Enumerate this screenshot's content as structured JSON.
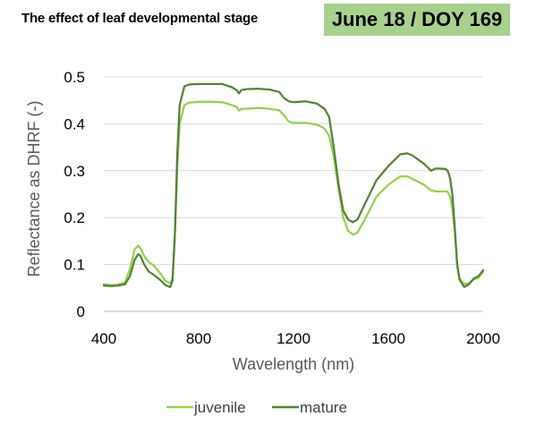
{
  "header": {
    "title": "The effect of leaf developmental stage",
    "date_badge": "June 18 / DOY 169"
  },
  "chart_data": {
    "type": "line",
    "title": "The effect of leaf developmental stage",
    "xlabel": "Wavelength (nm)",
    "ylabel": "Reflectance as DHRF (-)",
    "xlim": [
      400,
      2000
    ],
    "ylim": [
      0,
      0.5
    ],
    "xticks": [
      400,
      800,
      1200,
      1600,
      2000
    ],
    "yticks": [
      0,
      0.1,
      0.2,
      0.3,
      0.4,
      0.5
    ],
    "ytick_labels": [
      "0",
      "0.1",
      "0.2",
      "0.3",
      "0.4",
      "0.5"
    ],
    "grid": "horizontal",
    "legend_position": "bottom",
    "series": [
      {
        "name": "juvenile",
        "color": "#92d050",
        "x": [
          400,
          430,
          460,
          490,
          510,
          530,
          545,
          555,
          570,
          590,
          610,
          640,
          660,
          680,
          690,
          700,
          710,
          720,
          740,
          760,
          800,
          850,
          900,
          940,
          960,
          970,
          980,
          1000,
          1050,
          1100,
          1140,
          1160,
          1180,
          1200,
          1250,
          1300,
          1330,
          1350,
          1370,
          1390,
          1410,
          1430,
          1450,
          1470,
          1500,
          1550,
          1600,
          1650,
          1680,
          1700,
          1750,
          1780,
          1800,
          1840,
          1850,
          1860,
          1870,
          1880,
          1890,
          1900,
          1920,
          1940,
          1960,
          1980,
          2000
        ],
        "y": [
          0.058,
          0.056,
          0.057,
          0.062,
          0.09,
          0.132,
          0.14,
          0.134,
          0.118,
          0.105,
          0.098,
          0.08,
          0.065,
          0.06,
          0.07,
          0.16,
          0.31,
          0.4,
          0.44,
          0.445,
          0.447,
          0.447,
          0.446,
          0.44,
          0.436,
          0.428,
          0.432,
          0.432,
          0.434,
          0.432,
          0.429,
          0.418,
          0.405,
          0.402,
          0.402,
          0.398,
          0.39,
          0.375,
          0.33,
          0.26,
          0.2,
          0.172,
          0.164,
          0.168,
          0.195,
          0.245,
          0.27,
          0.288,
          0.288,
          0.283,
          0.27,
          0.258,
          0.256,
          0.256,
          0.255,
          0.245,
          0.22,
          0.17,
          0.1,
          0.07,
          0.058,
          0.06,
          0.068,
          0.072,
          0.085
        ]
      },
      {
        "name": "mature",
        "color": "#548235",
        "x": [
          400,
          430,
          460,
          490,
          510,
          530,
          545,
          555,
          570,
          590,
          610,
          640,
          660,
          680,
          690,
          700,
          710,
          720,
          740,
          760,
          800,
          850,
          900,
          940,
          960,
          970,
          980,
          1000,
          1050,
          1100,
          1140,
          1160,
          1180,
          1200,
          1250,
          1300,
          1330,
          1350,
          1370,
          1390,
          1410,
          1430,
          1450,
          1470,
          1500,
          1550,
          1600,
          1650,
          1680,
          1700,
          1750,
          1780,
          1800,
          1840,
          1850,
          1860,
          1870,
          1880,
          1890,
          1900,
          1920,
          1940,
          1960,
          1980,
          2000
        ],
        "y": [
          0.055,
          0.054,
          0.055,
          0.058,
          0.075,
          0.11,
          0.122,
          0.118,
          0.1,
          0.085,
          0.078,
          0.066,
          0.056,
          0.052,
          0.065,
          0.17,
          0.34,
          0.44,
          0.48,
          0.484,
          0.485,
          0.485,
          0.485,
          0.478,
          0.472,
          0.465,
          0.472,
          0.474,
          0.475,
          0.473,
          0.468,
          0.455,
          0.448,
          0.446,
          0.448,
          0.443,
          0.432,
          0.415,
          0.35,
          0.27,
          0.215,
          0.196,
          0.19,
          0.196,
          0.228,
          0.28,
          0.31,
          0.335,
          0.337,
          0.333,
          0.315,
          0.3,
          0.305,
          0.304,
          0.3,
          0.285,
          0.25,
          0.18,
          0.1,
          0.068,
          0.052,
          0.058,
          0.07,
          0.075,
          0.088
        ]
      }
    ]
  }
}
